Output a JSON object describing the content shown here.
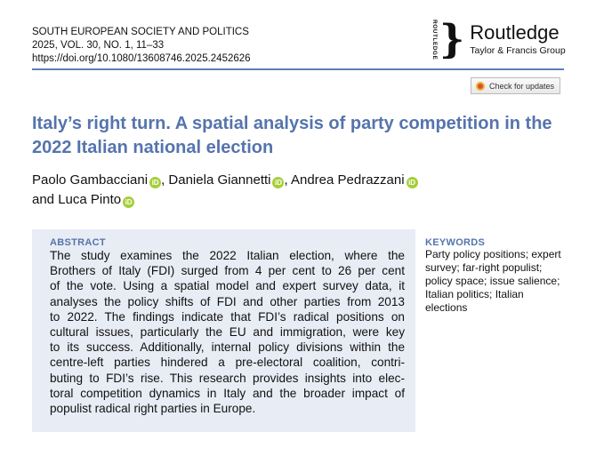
{
  "journal": {
    "name": "SOUTH EUROPEAN SOCIETY AND POLITICS",
    "issue": "2025, VOL. 30, NO. 1, 11–33",
    "doi": "https://doi.org/10.1080/13608746.2025.2452626"
  },
  "publisher": {
    "vertical": "ROUTLEDGE",
    "name": "Routledge",
    "group": "Taylor & Francis Group"
  },
  "check_updates": "Check for updates",
  "title": "Italy’s right turn. A spatial analysis of party competition in the 2022 Italian national election",
  "authors": [
    "Paolo Gambacciani",
    ", Daniela Giannetti",
    ", Andrea Pedrazzani",
    "and Luca Pinto"
  ],
  "orcid_label": "iD",
  "abstract": {
    "heading": "ABSTRACT",
    "lines": [
      "The study examines the 2022 Italian election, where the",
      "Brothers of Italy (FDI) surged from 4 per cent to 26 per cent",
      "of the vote. Using a spatial model and expert survey data, it",
      "analyses the policy shifts of FDI and other parties from 2013",
      "to 2022. The findings indicate that FDI’s radical positions on",
      "cultural issues, particularly the EU and immigration, were key",
      "to its success. Additionally, internal policy divisions within the",
      "centre-left parties hindered a pre-electoral coalition, contri-",
      "buting to FDI’s rise. This research provides insights into elec-",
      "toral competition dynamics in Italy and the broader impact of",
      "populist radical right parties in Europe."
    ]
  },
  "keywords": {
    "heading": "KEYWORDS",
    "lines": [
      "Party policy positions; expert",
      "survey; far-right populist;",
      "policy space; issue salience;",
      "Italian politics; Italian",
      "elections"
    ]
  }
}
